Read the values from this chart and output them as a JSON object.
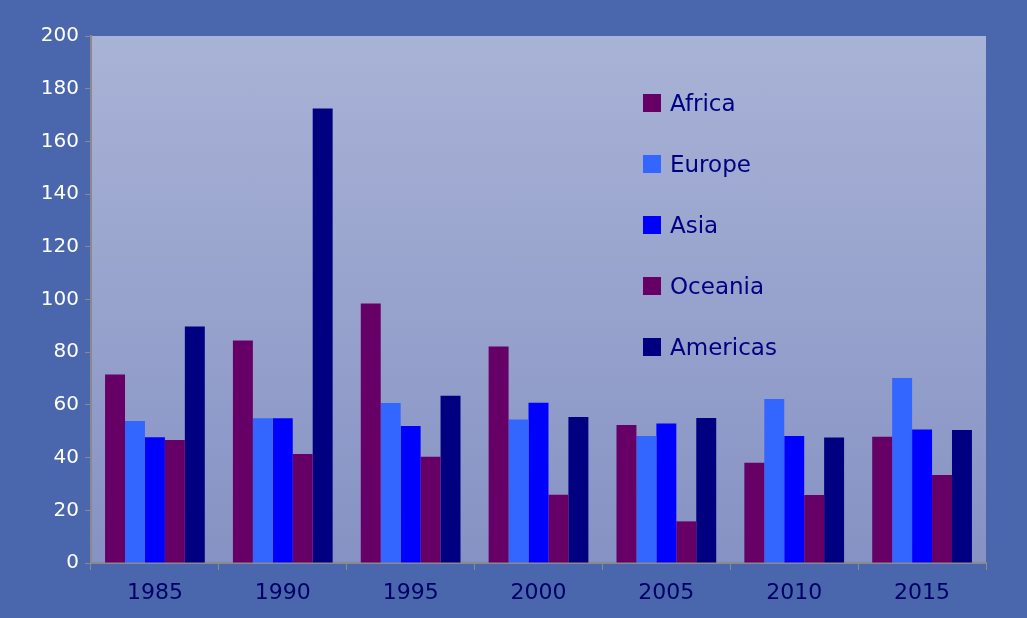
{
  "chart_data": {
    "type": "bar",
    "categories": [
      "1985",
      "1990",
      "1995",
      "2000",
      "2005",
      "2010",
      "2015"
    ],
    "series": [
      {
        "name": "Africa",
        "color": "#660066",
        "values": [
          71.5,
          84.4,
          98.5,
          82.2,
          52.4,
          38,
          47.9
        ]
      },
      {
        "name": "Europe",
        "color": "#3366ff",
        "values": [
          53.9,
          54.9,
          60.7,
          54.5,
          48.2,
          62.2,
          70.2
        ]
      },
      {
        "name": "Asia",
        "color": "#0000ff",
        "values": [
          47.7,
          54.9,
          52,
          60.8,
          52.9,
          48.2,
          50.7
        ]
      },
      {
        "name": "Oceania",
        "color": "#660066",
        "values": [
          46.7,
          41.4,
          40.3,
          25.9,
          15.8,
          25.8,
          33.4
        ]
      },
      {
        "name": "Americas",
        "color": "#000080",
        "values": [
          89.8,
          172.5,
          63.5,
          55.4,
          55,
          47.6,
          50.5
        ]
      }
    ],
    "ylim": [
      0,
      200
    ],
    "yticks": [
      0,
      20,
      40,
      60,
      80,
      100,
      120,
      140,
      160,
      180,
      200
    ],
    "grid": false,
    "legend": "top right"
  }
}
